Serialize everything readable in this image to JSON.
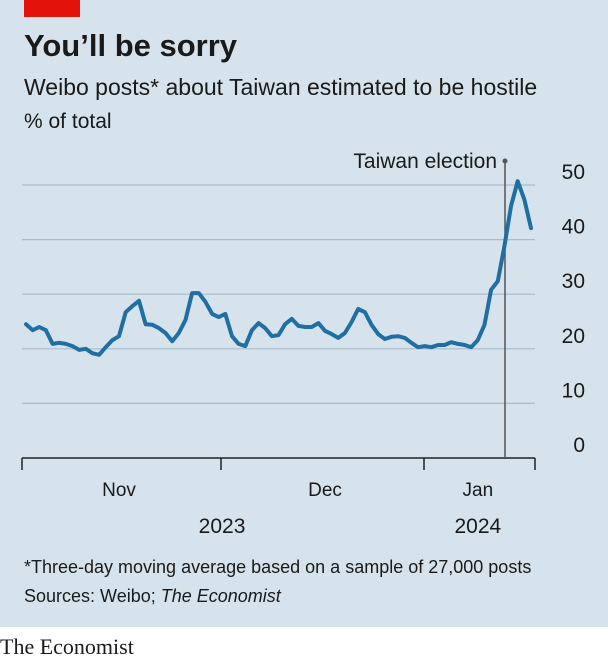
{
  "chart_data": {
    "type": "line",
    "title": "You’ll be sorry",
    "subtitle": "Weibo posts* about Taiwan estimated to be hostile",
    "y_label": "% of total",
    "annotation": "Taiwan election",
    "categories": [
      null,
      null,
      null,
      null,
      null,
      null,
      null,
      null,
      null,
      null,
      null,
      null,
      null,
      null,
      "Nov",
      null,
      null,
      null,
      null,
      null,
      null,
      null,
      null,
      null,
      null,
      null,
      null,
      null,
      null,
      null,
      null,
      null,
      null,
      null,
      null,
      null,
      null,
      null,
      null,
      null,
      null,
      null,
      null,
      null,
      null,
      "Dec",
      null,
      null,
      null,
      null,
      null,
      null,
      null,
      null,
      null,
      null,
      null,
      null,
      null,
      null,
      null,
      null,
      null,
      null,
      null,
      null,
      null,
      null,
      "Jan",
      null,
      null,
      null,
      null,
      null,
      null,
      null,
      null
    ],
    "years": [
      "2023",
      "2024"
    ],
    "series": [
      {
        "name": "Hostile posts",
        "color": "#1f6fa3",
        "values": [
          24.5,
          23.4,
          24.0,
          23.4,
          20.9,
          21.1,
          20.9,
          20.5,
          19.8,
          20.0,
          19.2,
          18.9,
          20.3,
          21.6,
          22.3,
          26.7,
          27.8,
          28.8,
          24.5,
          24.4,
          23.8,
          22.9,
          21.4,
          22.9,
          25.3,
          30.2,
          30.2,
          28.6,
          26.4,
          25.8,
          26.4,
          22.3,
          20.9,
          20.5,
          23.4,
          24.7,
          23.8,
          22.3,
          22.5,
          24.5,
          25.5,
          24.2,
          24.0,
          24.0,
          24.7,
          23.3,
          22.7,
          22.0,
          22.9,
          24.9,
          27.3,
          26.7,
          24.4,
          22.7,
          21.8,
          22.2,
          22.3,
          22.0,
          21.1,
          20.3,
          20.5,
          20.3,
          20.7,
          20.7,
          21.2,
          20.9,
          20.7,
          20.3,
          21.6,
          24.4,
          30.8,
          32.4,
          38.8,
          46.2,
          50.7,
          47.3,
          42.1
        ]
      }
    ],
    "ylim": [
      0,
      50
    ],
    "yticks": [
      0,
      10,
      20,
      30,
      40,
      50
    ],
    "grid": true,
    "footnote": "*Three-day moving average based on a sample of 27,000 posts",
    "source": "Sources: Weibo;",
    "source_name": "The Economist",
    "brand": "The Economist"
  }
}
